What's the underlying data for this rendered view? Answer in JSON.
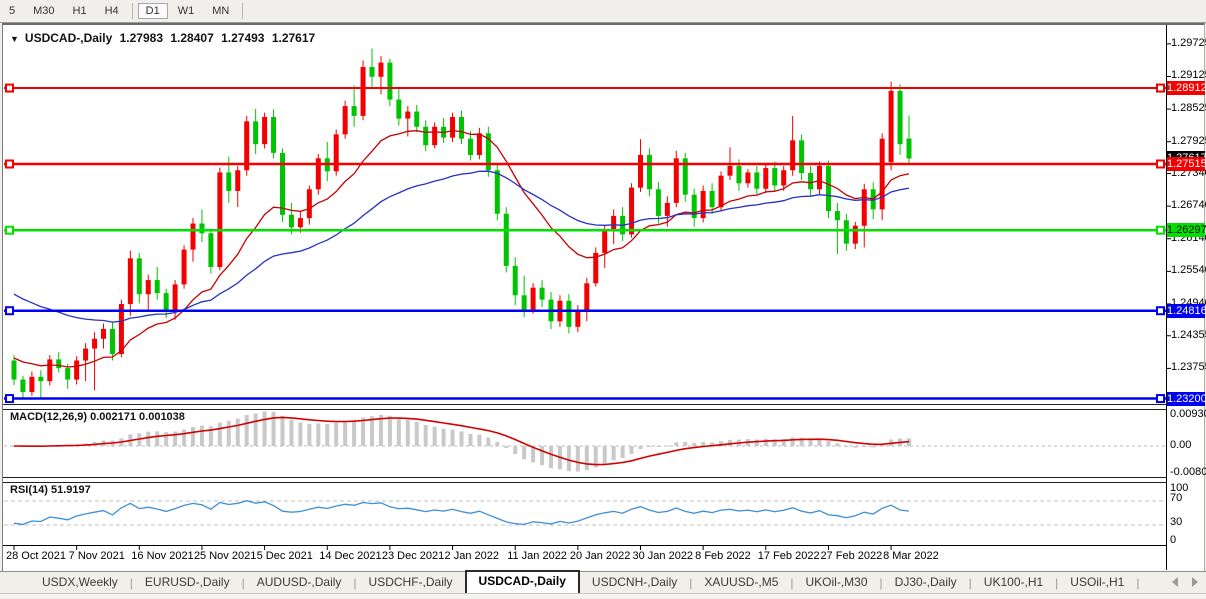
{
  "toolbar": {
    "timeframes": [
      "5",
      "M30",
      "H1",
      "H4",
      "D1",
      "W1",
      "MN"
    ],
    "active": "D1",
    "separators_after": [
      "H4",
      "MN"
    ]
  },
  "chart": {
    "title_symbol": "USDCAD-,Daily",
    "ohlc": {
      "open": "1.27983",
      "high": "1.28407",
      "low": "1.27493",
      "close": "1.27617"
    }
  },
  "chart_data": {
    "type": "candlestick",
    "symbol": "USDCAD-,Daily",
    "timeframe": "Daily",
    "x_tick_labels": [
      "28 Oct 2021",
      "7 Nov 2021",
      "16 Nov 2021",
      "25 Nov 2021",
      "5 Dec 2021",
      "14 Dec 2021",
      "23 Dec 2021",
      "2 Jan 2022",
      "11 Jan 2022",
      "20 Jan 2022",
      "30 Jan 2022",
      "8 Feb 2022",
      "17 Feb 2022",
      "27 Feb 2022",
      "8 Mar 2022"
    ],
    "y_axis_labels": [
      "1.29725",
      "1.29125",
      "1.28525",
      "1.27925",
      "1.27340",
      "1.26740",
      "1.26140",
      "1.25540",
      "1.24940",
      "1.24355",
      "1.23755"
    ],
    "candles": [
      [
        1.239,
        1.24,
        1.2345,
        1.2355
      ],
      [
        1.2355,
        1.2362,
        1.2318,
        1.2332
      ],
      [
        1.2332,
        1.237,
        1.2325,
        1.236
      ],
      [
        1.236,
        1.2372,
        1.232,
        1.2352
      ],
      [
        1.2352,
        1.24,
        1.2344,
        1.2392
      ],
      [
        1.2392,
        1.2406,
        1.2368,
        1.2376
      ],
      [
        1.2376,
        1.2384,
        1.2338,
        1.2355
      ],
      [
        1.2355,
        1.2398,
        1.2346,
        1.239
      ],
      [
        1.239,
        1.2422,
        1.2352,
        1.2412
      ],
      [
        1.2412,
        1.2442,
        1.2335,
        1.243
      ],
      [
        1.243,
        1.2458,
        1.2412,
        1.2448
      ],
      [
        1.2448,
        1.2462,
        1.239,
        1.2402
      ],
      [
        1.2402,
        1.2502,
        1.2396,
        1.2494
      ],
      [
        1.2494,
        1.2592,
        1.2472,
        1.2578
      ],
      [
        1.2578,
        1.2588,
        1.2495,
        1.2512
      ],
      [
        1.2512,
        1.2548,
        1.2482,
        1.2538
      ],
      [
        1.2538,
        1.2562,
        1.2502,
        1.2514
      ],
      [
        1.2514,
        1.2522,
        1.2468,
        1.248
      ],
      [
        1.248,
        1.2538,
        1.2465,
        1.253
      ],
      [
        1.253,
        1.2602,
        1.2522,
        1.2594
      ],
      [
        1.2594,
        1.2652,
        1.2572,
        1.2642
      ],
      [
        1.2642,
        1.2668,
        1.2608,
        1.2624
      ],
      [
        1.2624,
        1.2632,
        1.255,
        1.2562
      ],
      [
        1.2562,
        1.2745,
        1.2556,
        1.2736
      ],
      [
        1.2736,
        1.2765,
        1.268,
        1.2702
      ],
      [
        1.2702,
        1.2748,
        1.2672,
        1.274
      ],
      [
        1.274,
        1.284,
        1.273,
        1.283
      ],
      [
        1.283,
        1.2853,
        1.277,
        1.2788
      ],
      [
        1.2788,
        1.2846,
        1.278,
        1.2838
      ],
      [
        1.2838,
        1.2852,
        1.2762,
        1.2772
      ],
      [
        1.2772,
        1.278,
        1.2645,
        1.2658
      ],
      [
        1.2658,
        1.268,
        1.2622,
        1.2635
      ],
      [
        1.2635,
        1.2665,
        1.2625,
        1.2652
      ],
      [
        1.2652,
        1.2712,
        1.264,
        1.2705
      ],
      [
        1.2705,
        1.277,
        1.2695,
        1.2762
      ],
      [
        1.2762,
        1.2792,
        1.272,
        1.2738
      ],
      [
        1.2738,
        1.2815,
        1.273,
        1.2806
      ],
      [
        1.2806,
        1.2868,
        1.2798,
        1.2858
      ],
      [
        1.2858,
        1.2896,
        1.282,
        1.284
      ],
      [
        1.284,
        1.2942,
        1.2832,
        1.293
      ],
      [
        1.293,
        1.2964,
        1.289,
        1.2912
      ],
      [
        1.2912,
        1.295,
        1.288,
        1.2938
      ],
      [
        1.2938,
        1.2945,
        1.2858,
        1.287
      ],
      [
        1.287,
        1.289,
        1.2822,
        1.2835
      ],
      [
        1.2835,
        1.2858,
        1.2802,
        1.2848
      ],
      [
        1.2848,
        1.286,
        1.281,
        1.282
      ],
      [
        1.282,
        1.2832,
        1.2775,
        1.2786
      ],
      [
        1.2786,
        1.2828,
        1.278,
        1.282
      ],
      [
        1.282,
        1.2836,
        1.279,
        1.28
      ],
      [
        1.28,
        1.2846,
        1.2792,
        1.2838
      ],
      [
        1.2838,
        1.285,
        1.2788,
        1.2798
      ],
      [
        1.2798,
        1.2812,
        1.2758,
        1.2768
      ],
      [
        1.2768,
        1.2818,
        1.276,
        1.2808
      ],
      [
        1.2808,
        1.282,
        1.2728,
        1.274
      ],
      [
        1.274,
        1.2752,
        1.2648,
        1.266
      ],
      [
        1.266,
        1.2672,
        1.2552,
        1.2564
      ],
      [
        1.2564,
        1.258,
        1.2492,
        1.251
      ],
      [
        1.251,
        1.2546,
        1.247,
        1.2484
      ],
      [
        1.2484,
        1.2532,
        1.2476,
        1.2524
      ],
      [
        1.2524,
        1.2538,
        1.2488,
        1.2502
      ],
      [
        1.2502,
        1.2516,
        1.2448,
        1.2462
      ],
      [
        1.2462,
        1.251,
        1.2452,
        1.25
      ],
      [
        1.25,
        1.2512,
        1.244,
        1.2452
      ],
      [
        1.2452,
        1.2492,
        1.2442,
        1.2482
      ],
      [
        1.2482,
        1.2542,
        1.2462,
        1.2532
      ],
      [
        1.2532,
        1.2598,
        1.2526,
        1.2588
      ],
      [
        1.2588,
        1.2638,
        1.256,
        1.2628
      ],
      [
        1.2628,
        1.2668,
        1.2604,
        1.2656
      ],
      [
        1.2656,
        1.2672,
        1.261,
        1.2622
      ],
      [
        1.2622,
        1.2716,
        1.2616,
        1.2708
      ],
      [
        1.2708,
        1.2797,
        1.27,
        1.2768
      ],
      [
        1.2768,
        1.278,
        1.2692,
        1.2705
      ],
      [
        1.2705,
        1.2718,
        1.2642,
        1.2656
      ],
      [
        1.2656,
        1.2692,
        1.2636,
        1.268
      ],
      [
        1.268,
        1.2776,
        1.2672,
        1.2762
      ],
      [
        1.2762,
        1.2772,
        1.2682,
        1.2695
      ],
      [
        1.2695,
        1.2706,
        1.2636,
        1.2652
      ],
      [
        1.2652,
        1.2712,
        1.2644,
        1.2702
      ],
      [
        1.2702,
        1.2716,
        1.266,
        1.2672
      ],
      [
        1.2672,
        1.2738,
        1.2664,
        1.273
      ],
      [
        1.273,
        1.2782,
        1.2722,
        1.2748
      ],
      [
        1.2748,
        1.276,
        1.2702,
        1.2716
      ],
      [
        1.2716,
        1.2742,
        1.2708,
        1.2736
      ],
      [
        1.2736,
        1.2748,
        1.2696,
        1.2706
      ],
      [
        1.2706,
        1.2752,
        1.2698,
        1.2744
      ],
      [
        1.2744,
        1.2756,
        1.27,
        1.2712
      ],
      [
        1.2712,
        1.2748,
        1.2702,
        1.274
      ],
      [
        1.274,
        1.284,
        1.273,
        1.2795
      ],
      [
        1.2795,
        1.2806,
        1.2722,
        1.2735
      ],
      [
        1.2735,
        1.2748,
        1.2692,
        1.2705
      ],
      [
        1.2705,
        1.2756,
        1.2695,
        1.2748
      ],
      [
        1.2748,
        1.2758,
        1.2652,
        1.2665
      ],
      [
        1.2665,
        1.268,
        1.2586,
        1.2648
      ],
      [
        1.2648,
        1.266,
        1.2592,
        1.2605
      ],
      [
        1.2605,
        1.2645,
        1.2595,
        1.2638
      ],
      [
        1.2638,
        1.2715,
        1.2598,
        1.2705
      ],
      [
        1.2705,
        1.2718,
        1.265,
        1.2668
      ],
      [
        1.2668,
        1.2808,
        1.2648,
        1.2798
      ],
      [
        1.2755,
        1.2903,
        1.274,
        1.2886
      ],
      [
        1.2886,
        1.2898,
        1.2768,
        1.2788
      ],
      [
        1.27983,
        1.28407,
        1.27493,
        1.27617
      ]
    ],
    "overlays": [
      {
        "name": "ma-fast",
        "type": "ema",
        "period": 16,
        "color": "#c80000"
      },
      {
        "name": "ma-slow",
        "type": "ema",
        "period": 40,
        "color": "#2531c8"
      }
    ],
    "hlines": [
      {
        "price": 1.28912,
        "label": "1.28912",
        "color": "#f40000",
        "text": "#ffffff",
        "width": 2
      },
      {
        "price": 1.27515,
        "label": "1.27515",
        "color": "#f40000",
        "text": "#ffffff",
        "width": 2.5
      },
      {
        "price": 1.26297,
        "label": "1.26297",
        "color": "#00e100",
        "text": "#000000",
        "width": 2.5
      },
      {
        "price": 1.24816,
        "label": "1.24816",
        "color": "#0000f0",
        "text": "#ffffff",
        "width": 2.5
      },
      {
        "price": 1.232,
        "label": "1.23200",
        "color": "#0000f0",
        "text": "#ffffff",
        "width": 2.5
      }
    ],
    "price_badge": {
      "label": "1.27617",
      "bg": "#000000",
      "text": "#ffffff",
      "value": 1.27617
    },
    "macd": {
      "label": "MACD(12,26,9)",
      "values": "0.002171 0.001038",
      "params": [
        12,
        26,
        9
      ],
      "axis_labels": [
        {
          "v": 0.009303,
          "t": "0.009303"
        },
        {
          "v": 0,
          "t": "0.00"
        },
        {
          "v": -0.00801,
          "t": "-0.00801"
        }
      ],
      "hist_color": "#c9c9c9",
      "signal_color": "#d40000"
    },
    "rsi": {
      "label": "RSI(14)",
      "value": "51.9197",
      "period": 14,
      "color": "#3e90d8",
      "levels": [
        {
          "v": 100,
          "t": "100"
        },
        {
          "v": 70,
          "t": "70"
        },
        {
          "v": 30,
          "t": "30"
        },
        {
          "v": 0,
          "t": "0"
        }
      ],
      "dashed_levels": [
        70,
        30
      ]
    },
    "colors": {
      "bull": "#f40000",
      "bear": "#00c400"
    }
  },
  "tabs": {
    "items": [
      "USDX,Weekly",
      "EURUSD-,Daily",
      "AUDUSD-,Daily",
      "USDCHF-,Daily",
      "USDCAD-,Daily",
      "USDCNH-,Daily",
      "XAUUSD-,M5",
      "UKOil-,M30",
      "DJ30-,Daily",
      "UK100-,H1",
      "USOil-,H1"
    ],
    "active_index": 4
  }
}
